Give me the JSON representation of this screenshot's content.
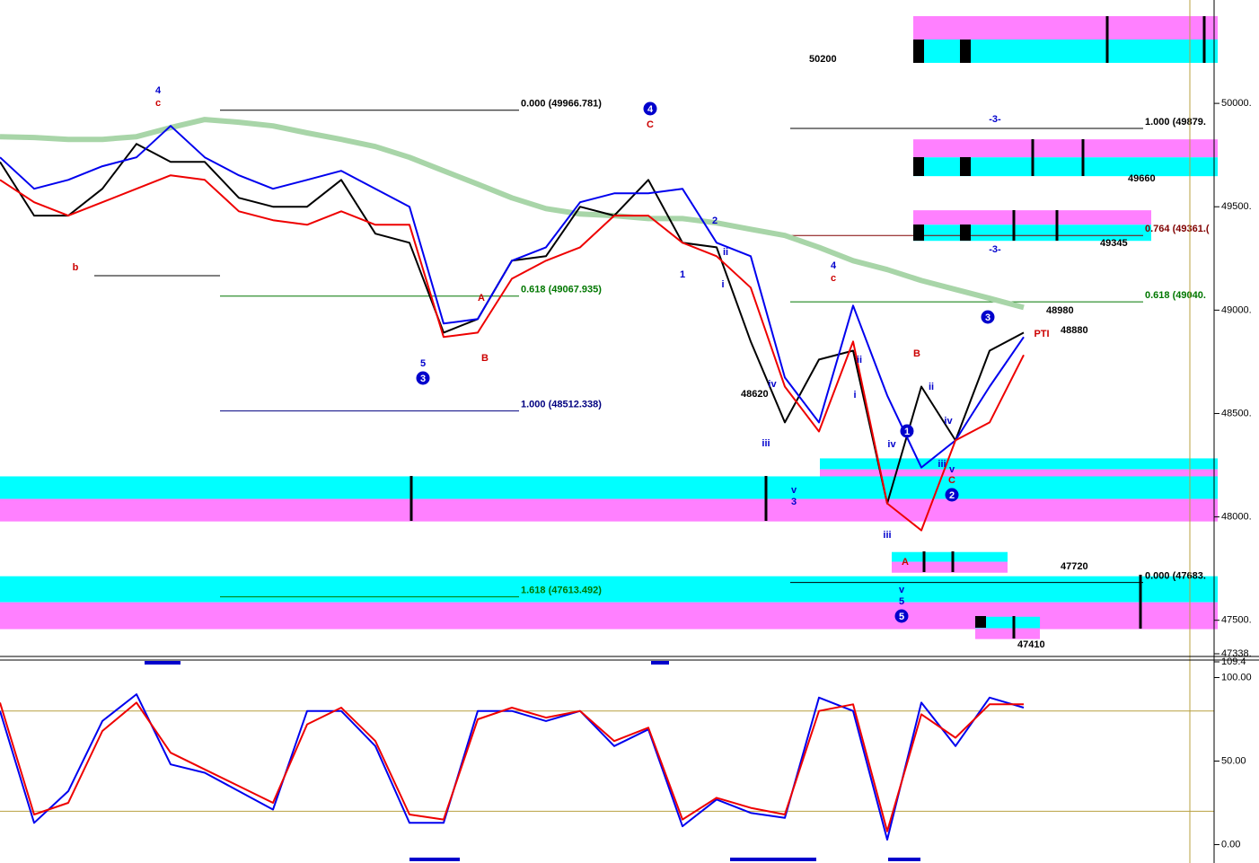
{
  "chart_data": [
    {
      "type": "line",
      "ylim": [
        47338,
        50500
      ],
      "yticks": [
        {
          "value": 50000,
          "label": "50000."
        },
        {
          "value": 49500,
          "label": "49500."
        },
        {
          "value": 49000,
          "label": "49000."
        },
        {
          "value": 48500,
          "label": "48500."
        },
        {
          "value": 48000,
          "label": "48000."
        },
        {
          "value": 47500,
          "label": "47500."
        },
        {
          "value": 47338,
          "label": "47338."
        }
      ],
      "series": [
        {
          "color": "#a8d5a8",
          "values": [
            49839,
            49835,
            49826,
            49826,
            49839,
            49883,
            49922,
            49909,
            49891,
            49857,
            49826,
            49791,
            49739,
            49674,
            49609,
            49543,
            49491,
            49465,
            49457,
            49443,
            49443,
            49422,
            49391,
            49361,
            49304,
            49239,
            49196,
            49143,
            49100,
            49057,
            49013
          ]
        },
        {
          "color": "#000000",
          "values": [
            49717,
            49457,
            49457,
            49587,
            49804,
            49717,
            49717,
            49543,
            49500,
            49500,
            49630,
            49370,
            49326,
            48891,
            48957,
            49239,
            49261,
            49500,
            49457,
            49630,
            49326,
            49304,
            48848,
            48457,
            48761,
            48804,
            48065,
            48630,
            48370,
            48804,
            48891
          ]
        },
        {
          "color": "#0000ee",
          "values": [
            49739,
            49587,
            49630,
            49696,
            49739,
            49891,
            49739,
            49652,
            49587,
            49630,
            49674,
            49587,
            49500,
            48935,
            48957,
            49239,
            49304,
            49522,
            49565,
            49565,
            49587,
            49326,
            49261,
            48674,
            48457,
            49022,
            48587,
            48239,
            48370,
            48630,
            48870
          ]
        },
        {
          "color": "#ee0000",
          "values": [
            49630,
            49522,
            49457,
            49522,
            49587,
            49652,
            49630,
            49478,
            49435,
            49413,
            49478,
            49413,
            49413,
            48870,
            48891,
            49152,
            49239,
            49304,
            49457,
            49457,
            49326,
            49261,
            49109,
            48630,
            48413,
            48848,
            48065,
            47935,
            48370,
            48457,
            48783
          ]
        }
      ],
      "zones": [
        {
          "from": 50422,
          "to": 50309,
          "color": "#ff80ff"
        },
        {
          "from": 50309,
          "to": 50196,
          "color": "#00ffff"
        },
        {
          "from": 49826,
          "to": 49739,
          "color": "#ff80ff"
        },
        {
          "from": 49739,
          "to": 49648,
          "color": "#00ffff"
        },
        {
          "from": 49483,
          "to": 49413,
          "color": "#ff80ff"
        },
        {
          "from": 49413,
          "to": 49335,
          "color": "#00ffff"
        },
        {
          "from": 48283,
          "to": 48230,
          "color": "#00ffff"
        },
        {
          "from": 48230,
          "to": 48174,
          "color": "#ff80ff"
        },
        {
          "from": 48196,
          "to": 48087,
          "color": "#00ffff"
        },
        {
          "from": 48087,
          "to": 47978,
          "color": "#ff80ff"
        },
        {
          "from": 47830,
          "to": 47783,
          "color": "#00ffff"
        },
        {
          "from": 47783,
          "to": 47730,
          "color": "#ff80ff"
        },
        {
          "from": 47713,
          "to": 47587,
          "color": "#00ffff"
        },
        {
          "from": 47587,
          "to": 47457,
          "color": "#ff80ff"
        },
        {
          "from": 47517,
          "to": 47461,
          "color": "#00ffff"
        },
        {
          "from": 47461,
          "to": 47409,
          "color": "#ff80ff"
        }
      ],
      "levels": [
        {
          "value": 49966.781,
          "label": "0.000 (49966.781)",
          "color": "#000000"
        },
        {
          "value": 49067.935,
          "label": "0.618 (49067.935)",
          "color": "#007700"
        },
        {
          "value": 48512.338,
          "label": "1.000 (48512.338)",
          "color": "#000080"
        },
        {
          "value": 47613.492,
          "label": "1.618 (47613.492)",
          "color": "#007700"
        },
        {
          "value": 49879,
          "label": "1.000 (49879.",
          "color": "#000000"
        },
        {
          "value": 49361,
          "label": "0.764 (49361.(",
          "color": "#800000"
        },
        {
          "value": 49040,
          "label": "0.618 (49040.",
          "color": "#007700"
        },
        {
          "value": 47683,
          "label": "0.000 (47683.",
          "color": "#000000"
        }
      ],
      "price_labels": [
        50200,
        49660,
        49345,
        48980,
        48880,
        48620,
        47720,
        47410
      ],
      "wave_labels": [
        {
          "text": "4",
          "color": "#0000cc"
        },
        {
          "text": "c",
          "color": "#cc0000"
        },
        {
          "text": "b",
          "color": "#cc0000"
        },
        {
          "text": "5",
          "color": "#0000cc"
        },
        {
          "text": "A",
          "color": "#cc0000"
        },
        {
          "text": "B",
          "color": "#cc0000"
        },
        {
          "text": "C",
          "color": "#cc0000"
        },
        {
          "text": "1",
          "color": "#0000cc"
        },
        {
          "text": "2",
          "color": "#0000cc"
        },
        {
          "text": "i",
          "color": "#0000cc"
        },
        {
          "text": "ii",
          "color": "#0000cc"
        },
        {
          "text": "iv",
          "color": "#0000cc"
        },
        {
          "text": "iii",
          "color": "#0000cc"
        },
        {
          "text": "v",
          "color": "#0000cc"
        },
        {
          "text": "3",
          "color": "#0000cc"
        },
        {
          "text": "4",
          "color": "#0000cc"
        },
        {
          "text": "c",
          "color": "#cc0000"
        },
        {
          "text": "ii",
          "color": "#0000cc"
        },
        {
          "text": "i",
          "color": "#0000cc"
        },
        {
          "text": "iv",
          "color": "#0000cc"
        },
        {
          "text": "iii",
          "color": "#0000cc"
        },
        {
          "text": "A",
          "color": "#cc0000"
        },
        {
          "text": "v",
          "color": "#0000cc"
        },
        {
          "text": "5",
          "color": "#0000cc"
        },
        {
          "text": "B",
          "color": "#cc0000"
        },
        {
          "text": "ii",
          "color": "#0000cc"
        },
        {
          "text": "iv",
          "color": "#0000cc"
        },
        {
          "text": "iii",
          "color": "#0000cc"
        },
        {
          "text": "v",
          "color": "#0000cc"
        },
        {
          "text": "C",
          "color": "#cc0000"
        },
        {
          "text": "-3-",
          "color": "#0000cc"
        },
        {
          "text": "-3-",
          "color": "#0000cc"
        },
        {
          "text": "PTI",
          "color": "#cc0000"
        }
      ],
      "circled_labels": [
        "4",
        "3",
        "5",
        "1",
        "2",
        "3"
      ]
    },
    {
      "type": "line",
      "ylim": [
        -11,
        109.4
      ],
      "yticks": [
        {
          "value": 109.4,
          "label": "109.4"
        },
        {
          "value": 100,
          "label": "100.00"
        },
        {
          "value": 50,
          "label": "50.00"
        },
        {
          "value": 0,
          "label": "0.00"
        }
      ],
      "levels": [
        80,
        20
      ],
      "series": [
        {
          "color": "#0000ee",
          "values": [
            80,
            13,
            32,
            74,
            90,
            48,
            43,
            32,
            21,
            80,
            80,
            59,
            13,
            13,
            80,
            80,
            74,
            80,
            59,
            69,
            11,
            27,
            19,
            16,
            88,
            80,
            3,
            85,
            59,
            88,
            82
          ]
        },
        {
          "color": "#ee0000",
          "values": [
            85,
            18,
            25,
            68,
            85,
            55,
            45,
            35,
            25,
            72,
            82,
            62,
            18,
            15,
            75,
            82,
            76,
            80,
            62,
            70,
            15,
            28,
            22,
            18,
            80,
            84,
            8,
            78,
            64,
            84,
            84
          ]
        }
      ]
    }
  ]
}
